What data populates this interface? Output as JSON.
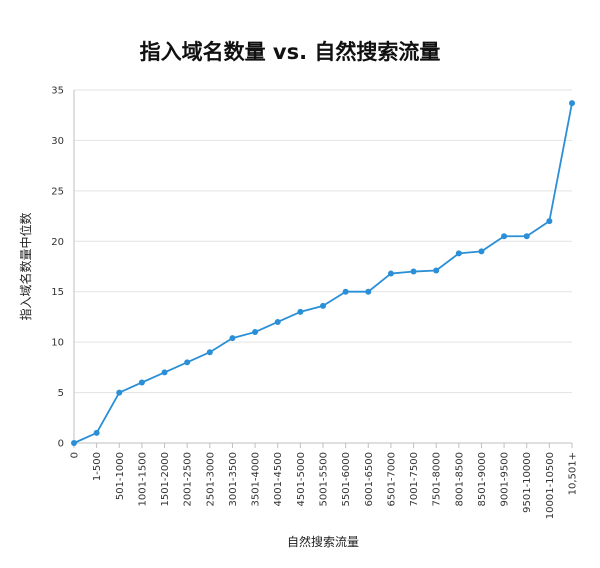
{
  "chart_data": {
    "type": "line",
    "title": "指入域名数量 vs. 自然搜索流量",
    "xlabel": "自然搜索流量",
    "ylabel": "指入域名数量中位数",
    "ylim": [
      0,
      35
    ],
    "yticks": [
      0,
      5,
      10,
      15,
      20,
      25,
      30,
      35
    ],
    "grid": true,
    "legend": "none",
    "line_color": "#2a8fd6",
    "categories": [
      "0",
      "1-500",
      "501-1000",
      "1001-1500",
      "1501-2000",
      "2001-2500",
      "2501-3000",
      "3001-3500",
      "3501-4000",
      "4001-4500",
      "4501-5000",
      "5001-5500",
      "5501-6000",
      "6001-6500",
      "6501-7000",
      "7001-7500",
      "7501-8000",
      "8001-8500",
      "8501-9000",
      "9001-9500",
      "9501-10000",
      "10001-10500",
      "10,501+"
    ],
    "values": [
      0,
      1,
      5,
      6,
      7,
      8,
      9,
      10.4,
      11,
      12,
      13,
      13.6,
      15,
      15,
      16.8,
      17,
      17.1,
      18.8,
      19,
      20.5,
      20.5,
      22,
      33.7
    ]
  }
}
